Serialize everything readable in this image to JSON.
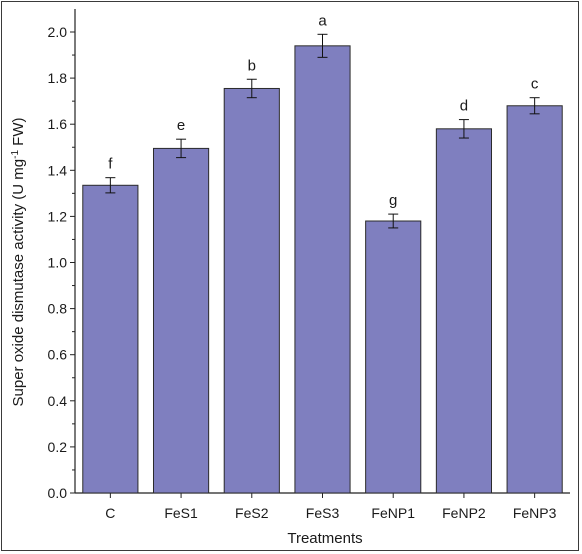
{
  "chart_data": {
    "type": "bar",
    "title": "",
    "xlabel": "Treatments",
    "ylabel_main": "Super oxide dismutase activity (U mg",
    "ylabel_sup": "-1",
    "ylabel_tail": " FW)",
    "categories": [
      "C",
      "FeS1",
      "FeS2",
      "FeS3",
      "FeNP1",
      "FeNP2",
      "FeNP3"
    ],
    "values": [
      1.335,
      1.495,
      1.755,
      1.94,
      1.18,
      1.58,
      1.68
    ],
    "errors": [
      0.033,
      0.04,
      0.04,
      0.05,
      0.03,
      0.04,
      0.035
    ],
    "significance_letters": [
      "f",
      "e",
      "b",
      "a",
      "g",
      "d",
      "c"
    ],
    "ylim": [
      0,
      2.1
    ],
    "yticks": [
      "0.0",
      "0.2",
      "0.4",
      "0.6",
      "0.8",
      "1.0",
      "1.2",
      "1.4",
      "1.6",
      "1.8",
      "2.0"
    ],
    "grid": false,
    "legend": "none",
    "bar_color": "#7f7fbf"
  }
}
